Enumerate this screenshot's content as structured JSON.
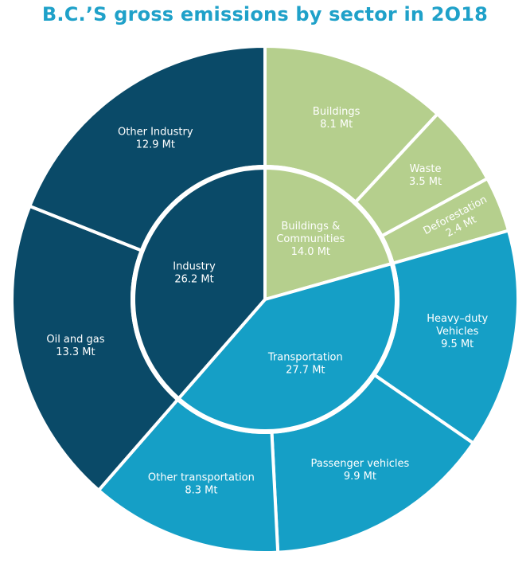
{
  "chart_data": {
    "type": "pie",
    "title": "B.C.’S gross emissions by sector in 2O18",
    "inner": [
      {
        "name": "Buildings & Communities",
        "lines": [
          "Buildings &",
          "Communities"
        ],
        "value_label": "14.0 Mt",
        "value": 14.0,
        "color": "#b5cf8d",
        "text_color": "#ffffff"
      },
      {
        "name": "Transportation",
        "lines": [
          "Transportation"
        ],
        "value_label": "27.7 Mt",
        "value": 27.7,
        "color": "#159fc6",
        "text_color": "#ffffff"
      },
      {
        "name": "Industry",
        "lines": [
          "Industry"
        ],
        "value_label": "26.2 Mt",
        "value": 26.2,
        "color": "#0a4a68",
        "text_color": "#ffffff"
      }
    ],
    "outer": [
      {
        "name": "Buildings",
        "lines": [
          "Buildings"
        ],
        "value_label": "8.1 Mt",
        "value": 8.1,
        "color": "#b5cf8d"
      },
      {
        "name": "Waste",
        "lines": [
          "Waste"
        ],
        "value_label": "3.5 Mt",
        "value": 3.5,
        "color": "#b5cf8d"
      },
      {
        "name": "Deforestation",
        "lines": [
          "Deforestation"
        ],
        "value_label": "2.4 Mt",
        "value": 2.4,
        "color": "#b5cf8d"
      },
      {
        "name": "Heavy-duty Vehicles",
        "lines": [
          "Heavy–duty",
          "Vehicles"
        ],
        "value_label": "9.5 Mt",
        "value": 9.5,
        "color": "#159fc6"
      },
      {
        "name": "Passenger vehicles",
        "lines": [
          "Passenger vehicles"
        ],
        "value_label": "9.9 Mt",
        "value": 9.9,
        "color": "#159fc6"
      },
      {
        "name": "Other transportation",
        "lines": [
          "Other transportation"
        ],
        "value_label": "8.3 Mt",
        "value": 8.3,
        "color": "#159fc6"
      },
      {
        "name": "Oil and gas",
        "lines": [
          "Oil and gas"
        ],
        "value_label": "13.3 Mt",
        "value": 13.3,
        "color": "#0a4a68"
      },
      {
        "name": "Other Industry",
        "lines": [
          "Other Industry"
        ],
        "value_label": "12.9 Mt",
        "value": 12.9,
        "color": "#0a4a68"
      }
    ]
  }
}
